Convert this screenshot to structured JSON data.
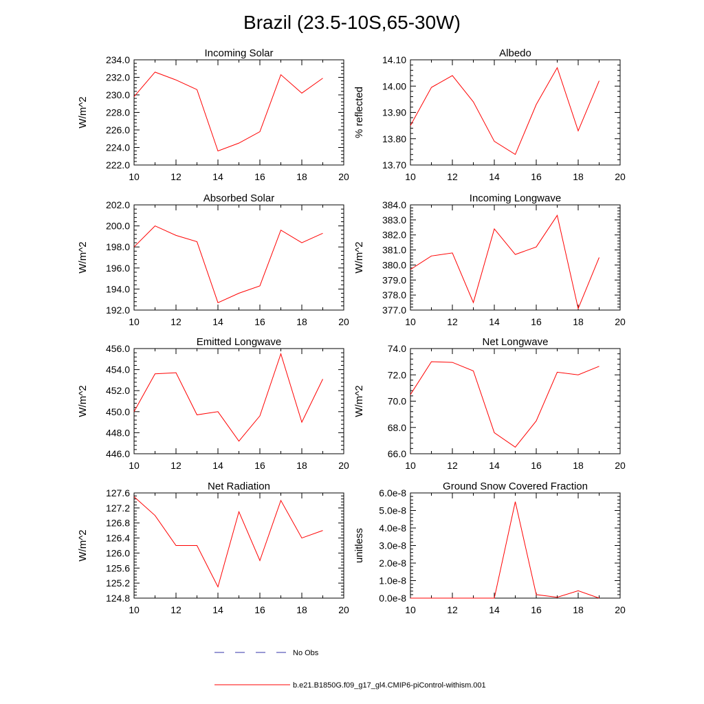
{
  "figure_title": "Brazil (23.5-10S,65-30W)",
  "colors": {
    "series": "#ff0000",
    "obs": "#3333aa",
    "axis": "#000000"
  },
  "legend": {
    "obs_label": "No Obs",
    "model_label": "b.e21.B1850G.f09_g17_gl4.CMIP6-piControl-withism.001"
  },
  "chart_data": [
    {
      "type": "line",
      "title": "Incoming Solar",
      "ylabel": "W/m^2",
      "xlim": [
        10,
        20
      ],
      "xticks": [
        "10",
        "12",
        "14",
        "16",
        "18",
        "20"
      ],
      "ylim": [
        222.0,
        234.0
      ],
      "yticks": [
        "222.0",
        "224.0",
        "226.0",
        "228.0",
        "230.0",
        "232.0",
        "234.0"
      ],
      "x": [
        10,
        11,
        12,
        13,
        14,
        15,
        16,
        17,
        18,
        19
      ],
      "values": [
        229.8,
        232.6,
        231.7,
        230.6,
        223.6,
        224.5,
        225.8,
        232.3,
        230.2,
        231.9
      ]
    },
    {
      "type": "line",
      "title": "Albedo",
      "ylabel": "% reflected",
      "xlim": [
        10,
        20
      ],
      "xticks": [
        "10",
        "12",
        "14",
        "16",
        "18",
        "20"
      ],
      "ylim": [
        13.7,
        14.1
      ],
      "yticks": [
        "13.70",
        "13.80",
        "13.90",
        "14.00",
        "14.10"
      ],
      "x": [
        10,
        11,
        12,
        13,
        14,
        15,
        16,
        17,
        18,
        19
      ],
      "values": [
        13.85,
        13.995,
        14.04,
        13.94,
        13.79,
        13.74,
        13.93,
        14.07,
        13.83,
        14.02
      ]
    },
    {
      "type": "line",
      "title": "Absorbed Solar",
      "ylabel": "W/m^2",
      "xlim": [
        10,
        20
      ],
      "xticks": [
        "10",
        "12",
        "14",
        "16",
        "18",
        "20"
      ],
      "ylim": [
        192.0,
        202.0
      ],
      "yticks": [
        "192.0",
        "194.0",
        "196.0",
        "198.0",
        "200.0",
        "202.0"
      ],
      "x": [
        10,
        11,
        12,
        13,
        14,
        15,
        16,
        17,
        18,
        19
      ],
      "values": [
        198.0,
        200.0,
        199.1,
        198.5,
        192.7,
        193.6,
        194.3,
        199.6,
        198.4,
        199.3
      ]
    },
    {
      "type": "line",
      "title": "Incoming Longwave",
      "ylabel": "W/m^2",
      "xlim": [
        10,
        20
      ],
      "xticks": [
        "10",
        "12",
        "14",
        "16",
        "18",
        "20"
      ],
      "ylim": [
        377.0,
        384.0
      ],
      "yticks": [
        "377.0",
        "378.0",
        "379.0",
        "380.0",
        "381.0",
        "382.0",
        "383.0",
        "384.0"
      ],
      "x": [
        10,
        11,
        12,
        13,
        14,
        15,
        16,
        17,
        18,
        19
      ],
      "values": [
        379.7,
        380.6,
        380.8,
        377.5,
        382.4,
        380.7,
        381.2,
        383.3,
        377.1,
        380.5
      ]
    },
    {
      "type": "line",
      "title": "Emitted Longwave",
      "ylabel": "W/m^2",
      "xlim": [
        10,
        20
      ],
      "xticks": [
        "10",
        "12",
        "14",
        "16",
        "18",
        "20"
      ],
      "ylim": [
        446.0,
        456.0
      ],
      "yticks": [
        "446.0",
        "448.0",
        "450.0",
        "452.0",
        "454.0",
        "456.0"
      ],
      "x": [
        10,
        11,
        12,
        13,
        14,
        15,
        16,
        17,
        18,
        19
      ],
      "values": [
        450.0,
        453.6,
        453.7,
        449.7,
        450.0,
        447.2,
        449.6,
        455.5,
        449.0,
        453.1
      ]
    },
    {
      "type": "line",
      "title": "Net Longwave",
      "ylabel": "W/m^2",
      "xlim": [
        10,
        20
      ],
      "xticks": [
        "10",
        "12",
        "14",
        "16",
        "18",
        "20"
      ],
      "ylim": [
        66.0,
        74.0
      ],
      "yticks": [
        "66.0",
        "68.0",
        "70.0",
        "72.0",
        "74.0"
      ],
      "x": [
        10,
        11,
        12,
        13,
        14,
        15,
        16,
        17,
        18,
        19
      ],
      "values": [
        70.5,
        73.0,
        72.95,
        72.3,
        67.6,
        66.5,
        68.5,
        72.2,
        72.0,
        72.65
      ]
    },
    {
      "type": "line",
      "title": "Net Radiation",
      "ylabel": "W/m^2",
      "xlim": [
        10,
        20
      ],
      "xticks": [
        "10",
        "12",
        "14",
        "16",
        "18",
        "20"
      ],
      "ylim": [
        124.8,
        127.6
      ],
      "yticks": [
        "124.8",
        "125.2",
        "125.6",
        "126.0",
        "126.4",
        "126.8",
        "127.2",
        "127.6"
      ],
      "x": [
        10,
        11,
        12,
        13,
        14,
        15,
        16,
        17,
        18,
        19
      ],
      "values": [
        127.5,
        127.0,
        126.2,
        126.2,
        125.1,
        127.1,
        125.8,
        127.4,
        126.4,
        126.6
      ]
    },
    {
      "type": "line",
      "title": "Ground Snow Covered Fraction",
      "ylabel": "unitless",
      "xlim": [
        10,
        20
      ],
      "xticks": [
        "10",
        "12",
        "14",
        "16",
        "18",
        "20"
      ],
      "ylim": [
        0,
        6e-08
      ],
      "yticks": [
        "0.0e-8",
        "1.0e-8",
        "2.0e-8",
        "3.0e-8",
        "4.0e-8",
        "5.0e-8",
        "6.0e-8"
      ],
      "x": [
        10,
        11,
        12,
        13,
        14,
        15,
        16,
        17,
        18,
        19
      ],
      "values": [
        0,
        0,
        0,
        0,
        0,
        5.5e-08,
        2e-09,
        5e-10,
        4.2e-09,
        0
      ]
    }
  ]
}
